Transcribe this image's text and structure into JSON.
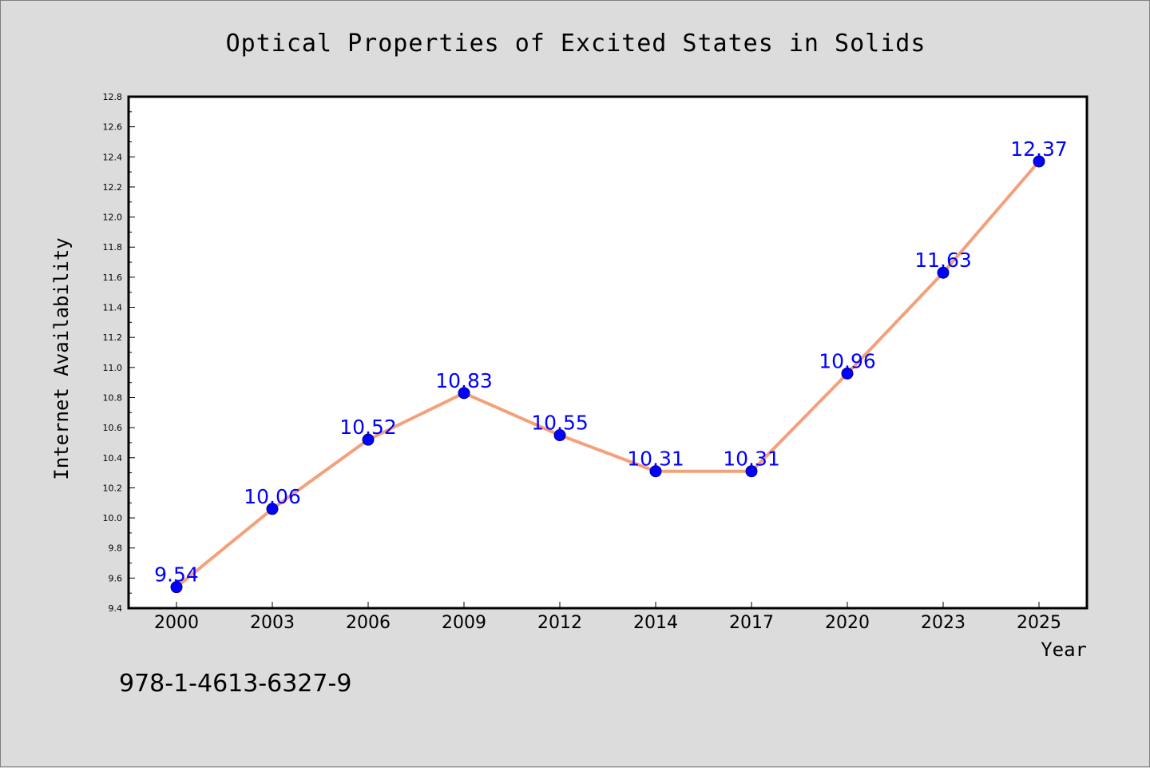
{
  "chart_data": {
    "type": "line",
    "title": "Optical Properties of Excited States in Solids",
    "xlabel": "Year",
    "ylabel": "Internet Availability",
    "categories": [
      "2000",
      "2003",
      "2006",
      "2009",
      "2012",
      "2014",
      "2017",
      "2020",
      "2023",
      "2025"
    ],
    "series": [
      {
        "values": [
          9.54,
          10.06,
          10.52,
          10.83,
          10.55,
          10.31,
          10.31,
          10.96,
          11.63,
          12.37
        ],
        "line_color": "#f4a07a",
        "marker_color": "#0000ff"
      }
    ],
    "data_labels": [
      "9.54",
      "10.06",
      "10.52",
      "10.83",
      "10.55",
      "10.31",
      "10.31",
      "10.96",
      "11.63",
      "12.37"
    ],
    "ylim": [
      9.4,
      12.8
    ],
    "yticks": [
      "9.4",
      "9.6",
      "9.8",
      "10.0",
      "10.2",
      "10.4",
      "10.6",
      "10.8",
      "11.0",
      "11.2",
      "11.4",
      "11.6",
      "11.8",
      "12.0",
      "12.2",
      "12.4",
      "12.6",
      "12.8"
    ],
    "grid": false,
    "legend": "none"
  },
  "footer": {
    "isbn": "978-1-4613-6327-9"
  },
  "colors": {
    "background": "#dcdcdc",
    "plot_background": "#ffffff",
    "label_color": "#0000ff"
  }
}
